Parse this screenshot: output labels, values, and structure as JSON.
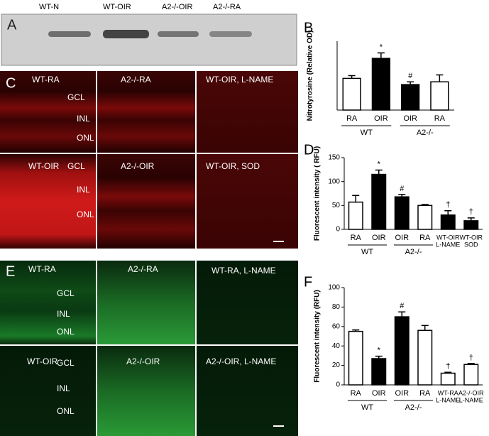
{
  "panel_a": {
    "label": "A",
    "lanes": [
      "WT-N",
      "WT-OIR",
      "A2-/-OIR",
      "A2-/-RA"
    ]
  },
  "panel_c": {
    "label": "C",
    "images": [
      "WT-RA",
      "A2-/-RA",
      "WT-OIR, L-NAME",
      "WT-OIR",
      "A2-/-OIR",
      "WT-OIR,  SOD"
    ],
    "layers": [
      "GCL",
      "INL",
      "ONL"
    ]
  },
  "panel_e": {
    "label": "E",
    "images": [
      "WT-RA",
      "A2-/-RA",
      "WT-RA, L-NAME",
      "WT-OIR",
      "A2-/-OIR",
      "A2-/-OIR, L-NAME"
    ],
    "layers": [
      "GCL",
      "INL",
      "ONL"
    ]
  },
  "chart_data": [
    {
      "type": "bar",
      "label": "B",
      "ylabel": "Nitrotyrosine (Relative OD)",
      "categories": [
        "RA",
        "OIR",
        "OIR",
        "RA"
      ],
      "groups": [
        "WT",
        "A2-/-"
      ],
      "values": [
        23,
        37.5,
        18.5,
        20.5
      ],
      "errors": [
        2,
        4,
        2,
        5
      ],
      "markers": [
        null,
        "*",
        "#",
        null
      ],
      "colors": [
        "#ffffff",
        "#000000",
        "#000000",
        "#ffffff"
      ],
      "ylim": [
        0,
        50
      ]
    },
    {
      "type": "bar",
      "label": "D",
      "ylabel": "Fluorescent intensity ( RFU)",
      "categories": [
        "RA",
        "OIR",
        "OIR",
        "RA",
        [
          "WT-OIR",
          "L-NAME"
        ],
        [
          "WT-OIR",
          "SOD"
        ]
      ],
      "groups": [
        "WT",
        "A2-/-"
      ],
      "values": [
        57,
        115,
        68,
        50,
        30,
        18
      ],
      "errors": [
        14,
        9,
        5,
        2,
        9,
        6
      ],
      "markers": [
        null,
        "*",
        "#",
        null,
        "†",
        "†"
      ],
      "colors": [
        "#ffffff",
        "#000000",
        "#000000",
        "#ffffff",
        "#000000",
        "#000000"
      ],
      "ylim": [
        0,
        150
      ],
      "yticks": [
        0,
        50,
        100,
        150
      ]
    },
    {
      "type": "bar",
      "label": "F",
      "ylabel": "Fluorescent intensity (RFU)",
      "categories": [
        "RA",
        "OIR",
        "OIR",
        "RA",
        [
          "WT-RA",
          "L-NAME"
        ],
        [
          "A2-/-OIR",
          "L-NAME"
        ]
      ],
      "groups": [
        "WT",
        "A2-/-"
      ],
      "values": [
        55,
        27,
        70,
        56,
        12,
        21
      ],
      "errors": [
        1.5,
        2.5,
        5,
        5,
        1,
        1
      ],
      "markers": [
        null,
        "*",
        "#",
        null,
        "†",
        "†"
      ],
      "colors": [
        "#ffffff",
        "#000000",
        "#000000",
        "#ffffff",
        "#ffffff",
        "#ffffff"
      ],
      "ylim": [
        0,
        100
      ],
      "yticks": [
        0,
        20,
        40,
        60,
        80,
        100
      ]
    }
  ]
}
